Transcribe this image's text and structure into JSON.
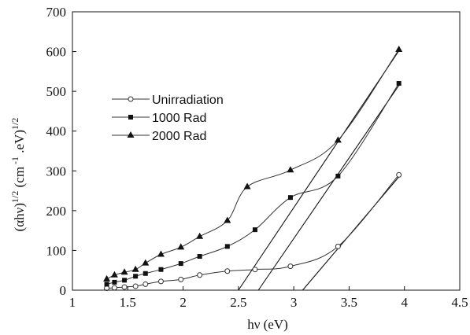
{
  "chart_data": {
    "type": "line",
    "xlabel": "hν (eV)",
    "ylabel": {
      "base": "(αhν)",
      "exp1": "1/2",
      "unit_open": " (cm",
      "unit_exp": " -1",
      "unit_mid": " .eV)",
      "exp2": "1/2"
    },
    "xlim": [
      1,
      4.5
    ],
    "ylim": [
      0,
      700
    ],
    "x_ticks": [
      "1",
      "1.5",
      "2",
      "2.5",
      "3",
      "3.5",
      "4",
      "4.5"
    ],
    "y_ticks": [
      "0",
      "100",
      "200",
      "300",
      "400",
      "500",
      "600",
      "700"
    ],
    "legend_position": "upper-left",
    "series": [
      {
        "name": "Unirradiation",
        "marker": "open-circle",
        "x": [
          1.31,
          1.38,
          1.47,
          1.57,
          1.66,
          1.8,
          1.98,
          2.15,
          2.4,
          2.65,
          2.97,
          3.4,
          3.95
        ],
        "y": [
          5,
          6,
          8,
          10,
          15,
          22,
          27,
          38,
          48,
          52,
          60,
          110,
          290
        ]
      },
      {
        "name": "1000 Rad",
        "marker": "filled-square",
        "x": [
          1.31,
          1.38,
          1.47,
          1.57,
          1.66,
          1.8,
          1.98,
          2.15,
          2.4,
          2.65,
          2.97,
          3.4,
          3.95
        ],
        "y": [
          15,
          20,
          25,
          35,
          42,
          52,
          67,
          85,
          110,
          152,
          233,
          287,
          520
        ]
      },
      {
        "name": "2000 Rad",
        "marker": "filled-triangle",
        "x": [
          1.31,
          1.38,
          1.47,
          1.57,
          1.66,
          1.8,
          1.98,
          2.15,
          2.4,
          2.58,
          2.97,
          3.4,
          3.95
        ],
        "y": [
          28,
          38,
          45,
          52,
          68,
          90,
          108,
          135,
          175,
          260,
          302,
          377,
          605
        ]
      }
    ],
    "fit_lines": [
      {
        "x": [
          3.08,
          3.95
        ],
        "y": [
          0,
          285
        ]
      },
      {
        "x": [
          2.68,
          3.95
        ],
        "y": [
          0,
          515
        ]
      },
      {
        "x": [
          2.5,
          3.95
        ],
        "y": [
          0,
          602
        ]
      }
    ]
  }
}
